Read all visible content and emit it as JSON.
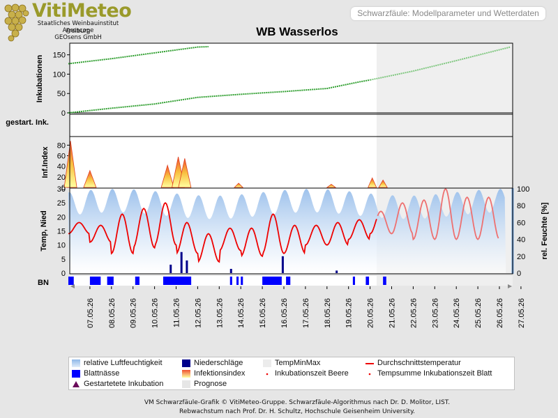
{
  "header": {
    "logo_text": "VitiMeteo",
    "logo_lines": [
      "Staatliches Weinbauinstitut Freiburg",
      "Agroscope",
      "GEOsens GmbH"
    ],
    "tab_label": "Schwarzfäule: Modellparameter und Wetterdaten",
    "title": "WB Wasserlos"
  },
  "colors": {
    "background": "#e6e6e6",
    "incubation_line": "#2e9e2e",
    "incubation_line_forecast": "#7fc77f",
    "temperature": "#ee0000",
    "temperature_forecast": "#ee7070",
    "humidity": "#a8c8ee",
    "leaf_wetness": "#0000ff",
    "precipitation": "#00008b",
    "forecast_shade": "#ececec"
  },
  "chart_data": {
    "type": "line",
    "x_dates": [
      "07.05.26",
      "08.05.26",
      "09.05.26",
      "10.05.26",
      "11.05.26",
      "12.05.26",
      "13.05.26",
      "14.05.26",
      "15.05.26",
      "16.05.26",
      "17.05.26",
      "18.05.26",
      "19.05.26",
      "20.05.26",
      "21.05.26",
      "22.05.26",
      "23.05.26",
      "24.05.26",
      "25.05.26",
      "26.05.26",
      "27.05.26"
    ],
    "forecast_start": "20.05.26 (approx. 18:00)",
    "panels": {
      "incubation": {
        "ylabel": "Inkubationen",
        "ylim": [
          0,
          180
        ],
        "ticks": [
          0,
          50,
          100,
          150
        ],
        "series": [
          {
            "name": "Inkubationszeit Beere",
            "x_day": [
              0,
              2,
              4,
              6,
              6.5
            ],
            "values": [
              127,
              140,
              155,
              170,
              171
            ]
          },
          {
            "name": "Inkubationszeit Blatt",
            "x_day": [
              0,
              2,
              4,
              6,
              8,
              10,
              12,
              13.5,
              14,
              16,
              18,
              20.5
            ],
            "values": [
              0,
              12,
              23,
              40,
              48,
              55,
              63,
              80,
              85,
              108,
              135,
              170
            ]
          }
        ]
      },
      "started_incubation": {
        "ylabel": "gestart. Ink."
      },
      "infection_index": {
        "ylabel": "Inf.Index",
        "ylim": [
          0,
          95
        ],
        "ticks": [
          0,
          20,
          40,
          60,
          80
        ],
        "peaks": [
          {
            "x_day": 0.1,
            "value": 88
          },
          {
            "x_day": 1.0,
            "value": 32
          },
          {
            "x_day": 4.6,
            "value": 42
          },
          {
            "x_day": 5.1,
            "value": 58
          },
          {
            "x_day": 5.4,
            "value": 55
          },
          {
            "x_day": 7.9,
            "value": 8
          },
          {
            "x_day": 12.2,
            "value": 6
          },
          {
            "x_day": 14.1,
            "value": 18
          },
          {
            "x_day": 14.6,
            "value": 14
          }
        ]
      },
      "weather": {
        "ylabel_left": "Temp, Nied",
        "ylabel_right": "rel. Feuchte [%]",
        "ylim_left": [
          0,
          30
        ],
        "ylim_right": [
          0,
          100
        ],
        "ticks_left": [
          0,
          5,
          10,
          15,
          20,
          25,
          30
        ],
        "ticks_right": [
          0,
          20,
          40,
          60,
          80,
          100
        ],
        "temperature_daily_min": [
          14,
          11,
          7,
          9,
          10,
          7,
          4,
          8,
          6,
          7,
          7,
          10,
          10,
          12,
          14,
          14,
          12,
          12,
          12,
          12
        ],
        "temperature_daily_max": [
          18,
          17,
          21,
          23,
          25,
          18,
          14,
          16,
          16,
          21,
          17,
          17,
          18,
          19,
          22,
          25,
          26,
          30,
          27,
          27
        ],
        "precipitation_events": [
          {
            "x_day": 4.7,
            "value": 1.0
          },
          {
            "x_day": 5.2,
            "value": 2.5
          },
          {
            "x_day": 5.45,
            "value": 1.5
          },
          {
            "x_day": 9.9,
            "value": 2.0
          },
          {
            "x_day": 7.5,
            "value": 0.5
          },
          {
            "x_day": 12.4,
            "value": 0.3
          }
        ]
      },
      "leaf_wetness": {
        "ylabel": "BN",
        "wet_periods": [
          [
            0,
            0.25
          ],
          [
            1.0,
            1.5
          ],
          [
            1.8,
            2.1
          ],
          [
            3.1,
            3.3
          ],
          [
            4.4,
            5.7
          ],
          [
            7.5,
            7.6
          ],
          [
            7.8,
            7.9
          ],
          [
            8.0,
            8.1
          ],
          [
            9.0,
            9.9
          ],
          [
            10.1,
            10.3
          ],
          [
            13.2,
            13.3
          ],
          [
            13.8,
            13.95
          ],
          [
            14.6,
            14.75
          ]
        ]
      }
    },
    "legend": [
      {
        "label": "relative Luftfeuchtigkeit",
        "icon": "gradient-box"
      },
      {
        "label": "Niederschläge",
        "icon": "navy-box"
      },
      {
        "label": "TempMinMax",
        "icon": "light-box"
      },
      {
        "label": "Durchschnittstemperatur",
        "icon": "red-line"
      },
      {
        "label": "Blattnässe",
        "icon": "blue-box"
      },
      {
        "label": "Infektionsindex",
        "icon": "yellow-red-gradient"
      },
      {
        "label": "Inkubationszeit Beere",
        "icon": "red-dot"
      },
      {
        "label": "Tempsumme Inkubationszeit Blatt",
        "icon": "red-dot"
      },
      {
        "label": "Gestartetete Inkubation",
        "icon": "triangle"
      },
      {
        "label": "Prognose",
        "icon": "gray-box"
      }
    ]
  },
  "footer": [
    "VM Schwarzfäule-Grafik © VitiMeteo-Gruppe. Schwarzfäule-Algorithmus nach Dr. D. Molitor, LIST.",
    "Rebwachstum nach Prof. Dr. H. Schultz, Hochschule Geisenheim University."
  ]
}
